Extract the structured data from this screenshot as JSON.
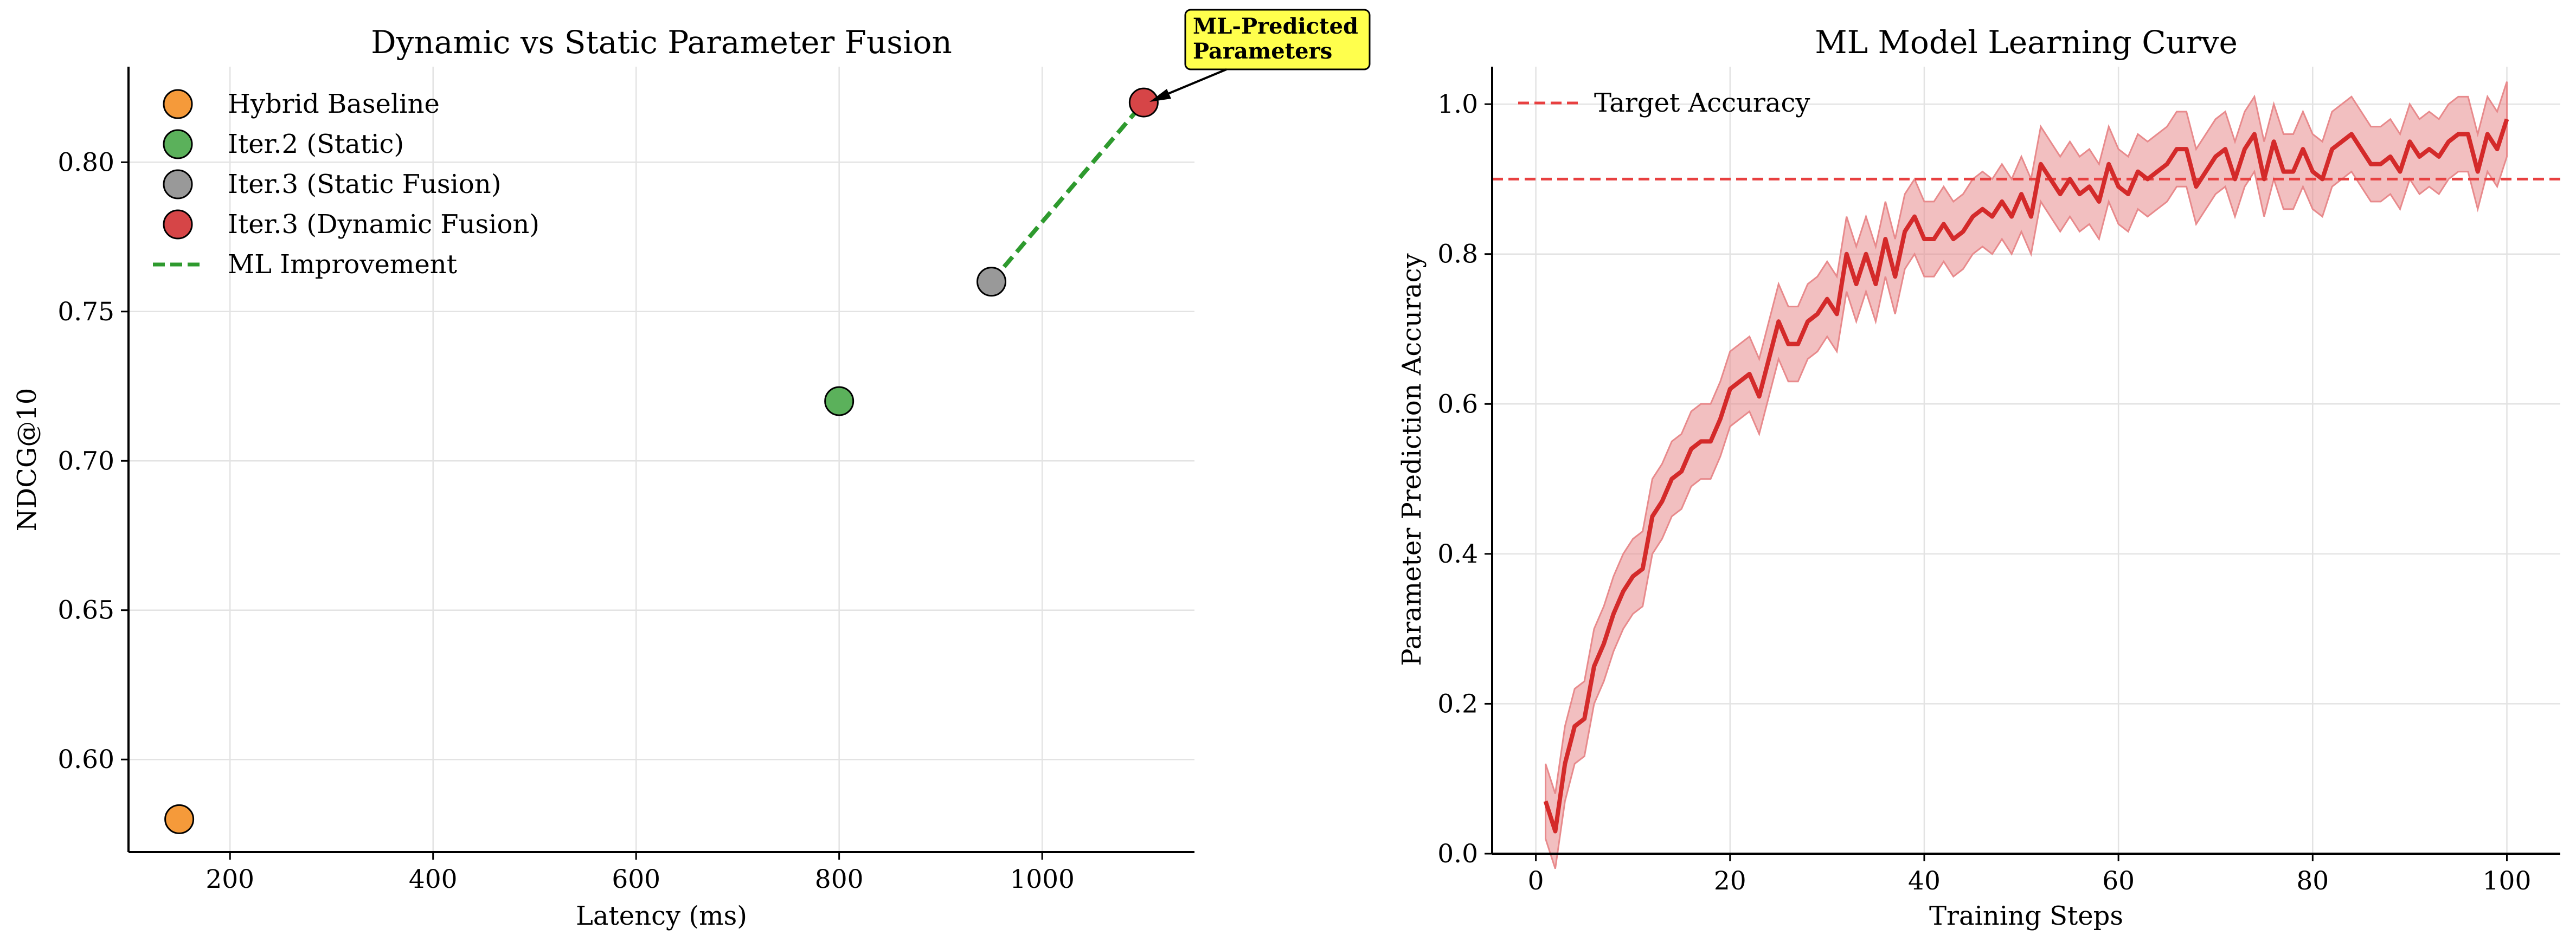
{
  "chart_data": [
    {
      "type": "scatter",
      "title": "Dynamic vs Static Parameter Fusion",
      "xlabel": "Latency (ms)",
      "ylabel": "NDCG@10",
      "xlim": [
        100,
        1150
      ],
      "ylim": [
        0.569,
        0.832
      ],
      "xticks": [
        200,
        400,
        600,
        800,
        1000
      ],
      "yticks": [
        0.6,
        0.65,
        0.7,
        0.75,
        0.8
      ],
      "xtick_labels": [
        "200",
        "400",
        "600",
        "800",
        "1000"
      ],
      "ytick_labels": [
        "0.60",
        "0.65",
        "0.70",
        "0.75",
        "0.80"
      ],
      "grid": true,
      "legend_position": "top-left",
      "series": [
        {
          "name": "Hybrid Baseline",
          "color": "#f59a3a",
          "points": [
            {
              "x": 150,
              "y": 0.58
            }
          ]
        },
        {
          "name": "Iter.2 (Static)",
          "color": "#5bb15b",
          "points": [
            {
              "x": 800,
              "y": 0.72
            }
          ]
        },
        {
          "name": "Iter.3 (Static Fusion)",
          "color": "#999999",
          "points": [
            {
              "x": 950,
              "y": 0.76
            }
          ]
        },
        {
          "name": "Iter.3 (Dynamic Fusion)",
          "color": "#d64547",
          "points": [
            {
              "x": 1100,
              "y": 0.82
            }
          ]
        }
      ],
      "line": {
        "name": "ML Improvement",
        "color": "#2e9a2e",
        "style": "dashed",
        "points": [
          {
            "x": 950,
            "y": 0.76
          },
          {
            "x": 1100,
            "y": 0.82
          }
        ]
      },
      "annotation": {
        "lines": [
          "ML-Predicted",
          "Parameters"
        ],
        "x": 1100,
        "y": 0.82,
        "box_color": "#ffff4d"
      }
    },
    {
      "type": "line",
      "title": "ML Model Learning Curve",
      "xlabel": "Training Steps",
      "ylabel": "Parameter Prediction Accuracy",
      "xlim": [
        -4.5,
        105.5
      ],
      "ylim": [
        0.0,
        1.05
      ],
      "xticks": [
        0,
        20,
        40,
        60,
        80,
        100
      ],
      "yticks": [
        0.0,
        0.2,
        0.4,
        0.6,
        0.8,
        1.0
      ],
      "xtick_labels": [
        "0",
        "20",
        "40",
        "60",
        "80",
        "100"
      ],
      "ytick_labels": [
        "0.0",
        "0.2",
        "0.4",
        "0.6",
        "0.8",
        "1.0"
      ],
      "grid": true,
      "legend_position": "top-left",
      "target": {
        "name": "Target Accuracy",
        "value": 0.9,
        "color": "#e84040",
        "style": "dashed"
      },
      "series": [
        {
          "color": "#d42a2a",
          "band_color": "#e88a8c",
          "band_halfwidth": 0.05,
          "x": [
            1,
            2,
            3,
            4,
            5,
            6,
            7,
            8,
            9,
            10,
            11,
            12,
            13,
            14,
            15,
            16,
            17,
            18,
            19,
            20,
            21,
            22,
            23,
            24,
            25,
            26,
            27,
            28,
            29,
            30,
            31,
            32,
            33,
            34,
            35,
            36,
            37,
            38,
            39,
            40,
            41,
            42,
            43,
            44,
            45,
            46,
            47,
            48,
            49,
            50,
            51,
            52,
            53,
            54,
            55,
            56,
            57,
            58,
            59,
            60,
            61,
            62,
            63,
            64,
            65,
            66,
            67,
            68,
            69,
            70,
            71,
            72,
            73,
            74,
            75,
            76,
            77,
            78,
            79,
            80,
            81,
            82,
            83,
            84,
            85,
            86,
            87,
            88,
            89,
            90,
            91,
            92,
            93,
            94,
            95,
            96,
            97,
            98,
            99,
            100
          ],
          "values": [
            0.07,
            0.03,
            0.12,
            0.17,
            0.18,
            0.25,
            0.28,
            0.32,
            0.35,
            0.37,
            0.38,
            0.45,
            0.47,
            0.5,
            0.51,
            0.54,
            0.55,
            0.55,
            0.58,
            0.62,
            0.63,
            0.64,
            0.61,
            0.66,
            0.71,
            0.68,
            0.68,
            0.71,
            0.72,
            0.74,
            0.72,
            0.8,
            0.76,
            0.8,
            0.76,
            0.82,
            0.77,
            0.83,
            0.85,
            0.82,
            0.82,
            0.84,
            0.82,
            0.83,
            0.85,
            0.86,
            0.85,
            0.87,
            0.85,
            0.88,
            0.85,
            0.92,
            0.9,
            0.88,
            0.9,
            0.88,
            0.89,
            0.87,
            0.92,
            0.89,
            0.88,
            0.91,
            0.9,
            0.91,
            0.92,
            0.94,
            0.94,
            0.89,
            0.91,
            0.93,
            0.94,
            0.9,
            0.94,
            0.96,
            0.9,
            0.95,
            0.91,
            0.91,
            0.94,
            0.91,
            0.9,
            0.94,
            0.95,
            0.96,
            0.94,
            0.92,
            0.92,
            0.93,
            0.91,
            0.95,
            0.93,
            0.94,
            0.93,
            0.95,
            0.96,
            0.96,
            0.91,
            0.96,
            0.94,
            0.98
          ]
        }
      ]
    }
  ]
}
